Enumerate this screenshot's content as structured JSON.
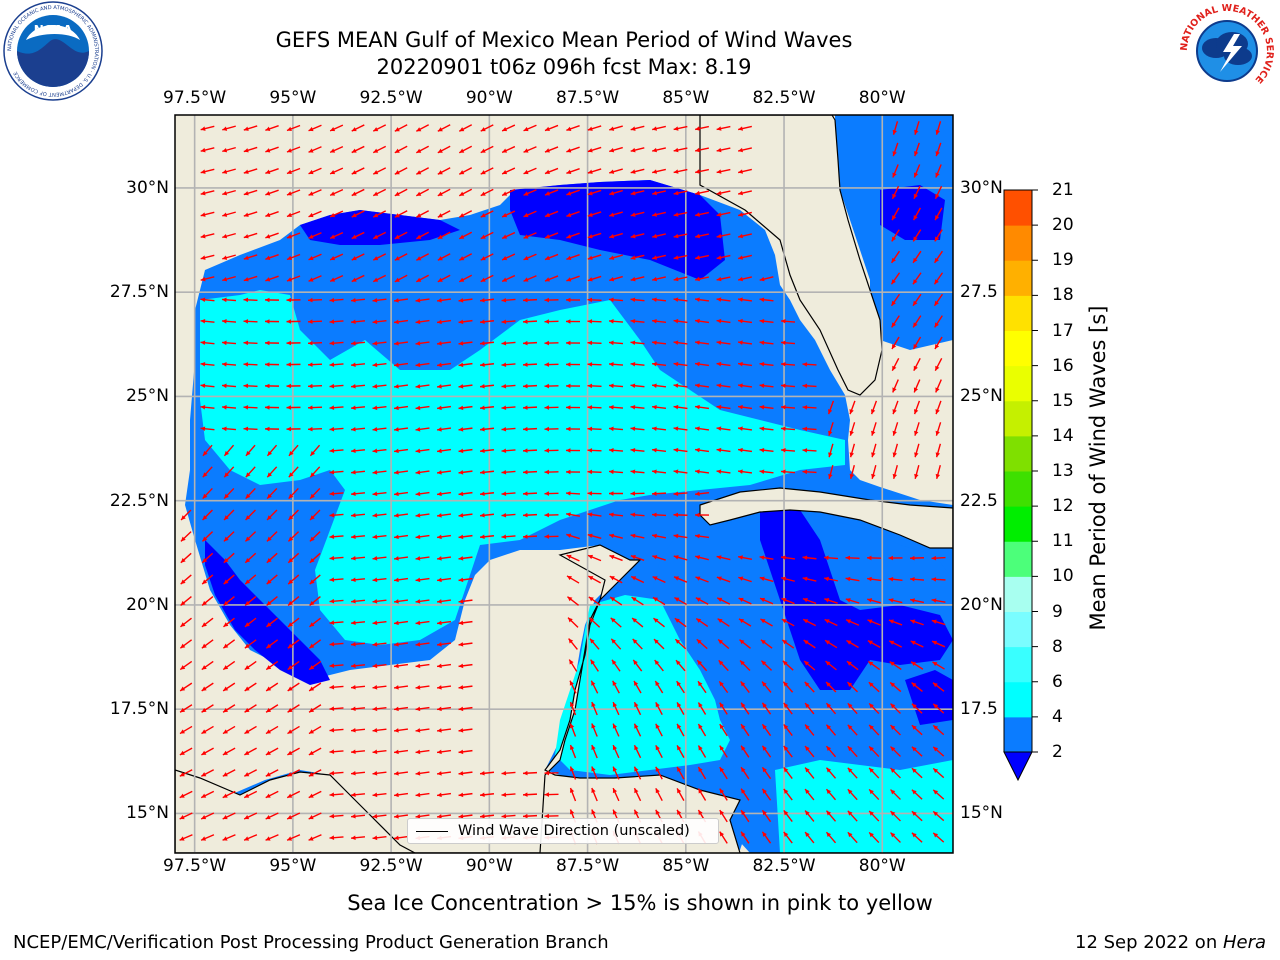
{
  "title": {
    "line1": "GEFS MEAN Gulf of Mexico Mean Period of Wind Waves",
    "line2": "20220901 t06z 096h fcst   Max: 8.19"
  },
  "logos": {
    "noaa_text": "NOAA",
    "noaa_ring": "NATIONAL OCEANIC AND ATMOSPHERIC ADMINISTRATION · U.S. DEPARTMENT OF COMMERCE",
    "nws_ring": "NATIONAL WEATHER SERVICE"
  },
  "map": {
    "lon_ticks": [
      "97.5°W",
      "95°W",
      "92.5°W",
      "90°W",
      "87.5°W",
      "85°W",
      "82.5°W",
      "80°W"
    ],
    "lon_values": [
      -97.5,
      -95,
      -92.5,
      -90,
      -87.5,
      -85,
      -82.5,
      -80
    ],
    "lat_ticks": [
      "30°N",
      "27.5°N",
      "25°N",
      "22.5°N",
      "20°N",
      "17.5°N",
      "15°N"
    ],
    "lat_values": [
      30,
      27.5,
      25,
      22.5,
      20,
      17.5,
      15
    ],
    "right_lat_ticks": [
      "30°N",
      "27.5",
      "25°N",
      "22.5",
      "20°N",
      "17.5",
      "15°N"
    ],
    "lon_range": [
      -98,
      -78.2
    ],
    "lat_range": [
      14.05,
      31.75
    ],
    "colors": {
      "land": "#efecdc",
      "coast": "#000000",
      "grid": "#b3b3b3",
      "arrow": "#ff0000"
    }
  },
  "legend": {
    "label": "Wind Wave Direction (unscaled)"
  },
  "colorbar": {
    "label": "Mean Period of Wind Waves [s]",
    "ticks": [
      "2",
      "4",
      "6",
      "8",
      "9",
      "10",
      "11",
      "12",
      "13",
      "14",
      "15",
      "16",
      "17",
      "18",
      "19",
      "20",
      "21"
    ],
    "colors": [
      "#0b7cff",
      "#00ffff",
      "#39ffff",
      "#7afdff",
      "#a8fff0",
      "#4cff7a",
      "#00ee00",
      "#3ee000",
      "#7fe000",
      "#c5f000",
      "#eaff00",
      "#ffff00",
      "#ffe100",
      "#ffb000",
      "#ff8a00",
      "#ff5000",
      "#ff2a00",
      "#ff0000"
    ],
    "under_color": "#0000ff"
  },
  "footnote": "Sea Ice Concentration > 15% is shown in pink to yellow",
  "footer": {
    "left": "NCEP/EMC/Verification Post Processing Product Generation Branch",
    "right_date": "12 Sep 2022 on ",
    "right_host": "Hera"
  }
}
